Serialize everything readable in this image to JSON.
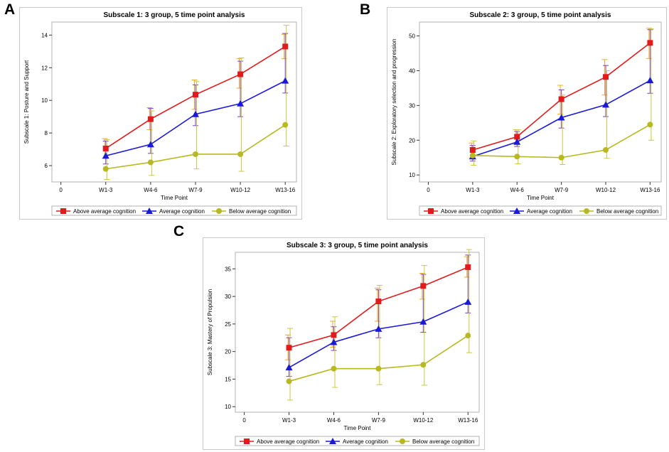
{
  "panels": [
    {
      "letter": "A"
    },
    {
      "letter": "B"
    },
    {
      "letter": "C"
    }
  ],
  "legend": {
    "above": "Above average cognition",
    "average": "Average cognition",
    "below": "Below average cognition"
  },
  "colors": {
    "above": "#e31a1c",
    "average": "#1a1ad6",
    "below": "#b8b820",
    "above_err": "#f5a623",
    "average_err": "#7a3fc0",
    "below_err": "#c8c840"
  },
  "chart_data": [
    {
      "type": "line",
      "title": "Subscale 1: 3 group, 5 time point analysis",
      "xlabel": "Time Point",
      "ylabel": "Subscale 1: Posture and Support",
      "x_tick_labels": [
        "0",
        "W1-3",
        "W4-6",
        "W7-9",
        "W10-12",
        "W13-16"
      ],
      "categories": [
        "W1-3",
        "W4-6",
        "W7-9",
        "W10-12",
        "W13-16"
      ],
      "ylim": [
        5.0,
        14.8
      ],
      "yticks": [
        "6",
        "8",
        "10",
        "12",
        "14"
      ],
      "series": [
        {
          "name": "Above average cognition",
          "values": [
            7.05,
            8.85,
            10.35,
            11.6,
            13.3
          ],
          "err_low": [
            6.45,
            8.2,
            9.45,
            10.75,
            12.55
          ],
          "err_high": [
            7.65,
            9.55,
            11.25,
            12.55,
            14.05
          ]
        },
        {
          "name": "Average cognition",
          "values": [
            6.6,
            7.3,
            9.15,
            9.8,
            11.2
          ],
          "err_low": [
            6.1,
            6.75,
            8.45,
            9.0,
            10.45
          ],
          "err_high": [
            7.5,
            9.5,
            10.95,
            12.4,
            14.1
          ]
        },
        {
          "name": "Below average cognition",
          "values": [
            5.8,
            6.2,
            6.7,
            6.7,
            8.5
          ],
          "err_low": [
            5.15,
            5.4,
            5.8,
            5.65,
            7.2
          ],
          "err_high": [
            7.6,
            9.35,
            11.15,
            12.6,
            14.6
          ]
        }
      ]
    },
    {
      "type": "line",
      "title": "Subscale 2: 3 group, 5 time point analysis",
      "xlabel": "Time Point",
      "ylabel": "Subscale 2: Exploratory selection and progression",
      "x_tick_labels": [
        "0",
        "W1-3",
        "W4-6",
        "W7-9",
        "W10-12",
        "W13-16"
      ],
      "categories": [
        "W1-3",
        "W4-6",
        "W7-9",
        "W10-12",
        "W13-16"
      ],
      "ylim": [
        8,
        54
      ],
      "yticks": [
        "10",
        "20",
        "30",
        "40",
        "50"
      ],
      "series": [
        {
          "name": "Above average cognition",
          "values": [
            17.2,
            21.0,
            31.8,
            38.2,
            48.0
          ],
          "err_low": [
            14.8,
            19.0,
            27.5,
            33.0,
            43.5
          ],
          "err_high": [
            19.2,
            23.0,
            35.8,
            43.2,
            52.2
          ]
        },
        {
          "name": "Average cognition",
          "values": [
            15.3,
            19.5,
            26.5,
            30.2,
            37.2
          ],
          "err_low": [
            14.0,
            18.2,
            23.5,
            26.8,
            33.5
          ],
          "err_high": [
            18.5,
            22.5,
            34.5,
            41.5,
            51.8
          ]
        },
        {
          "name": "Below average cognition",
          "values": [
            15.6,
            15.3,
            15.0,
            17.2,
            24.5
          ],
          "err_low": [
            12.8,
            13.2,
            13.0,
            14.8,
            20.0
          ],
          "err_high": [
            19.8,
            23.0,
            33.0,
            40.0,
            52.0
          ]
        }
      ]
    },
    {
      "type": "line",
      "title": "Subscale 3: 3 group, 5 time point analysis",
      "xlabel": "Time Point",
      "ylabel": "Subscale 3: Mastery of Propulsion",
      "x_tick_labels": [
        "0",
        "W1-3",
        "W4-6",
        "W7-9",
        "W10-12",
        "W13-16"
      ],
      "categories": [
        "W1-3",
        "W4-6",
        "W7-9",
        "W10-12",
        "W13-16"
      ],
      "ylim": [
        9,
        38
      ],
      "yticks": [
        "10",
        "15",
        "20",
        "25",
        "30",
        "35"
      ],
      "series": [
        {
          "name": "Above average cognition",
          "values": [
            20.7,
            23.0,
            29.1,
            31.9,
            35.3
          ],
          "err_low": [
            18.5,
            20.8,
            25.5,
            29.5,
            33.5
          ],
          "err_high": [
            23.0,
            25.5,
            31.5,
            34.2,
            37.2
          ]
        },
        {
          "name": "Average cognition",
          "values": [
            17.1,
            21.7,
            24.1,
            25.4,
            29.0
          ],
          "err_low": [
            15.5,
            20.2,
            22.5,
            23.5,
            27.0
          ],
          "err_high": [
            22.5,
            24.5,
            31.2,
            34.0,
            37.5
          ]
        },
        {
          "name": "Below average cognition",
          "values": [
            14.6,
            16.9,
            16.9,
            17.6,
            22.9
          ],
          "err_low": [
            11.2,
            13.5,
            14.0,
            13.9,
            19.8
          ],
          "err_high": [
            24.2,
            26.3,
            32.0,
            35.6,
            38.5
          ]
        }
      ]
    }
  ]
}
